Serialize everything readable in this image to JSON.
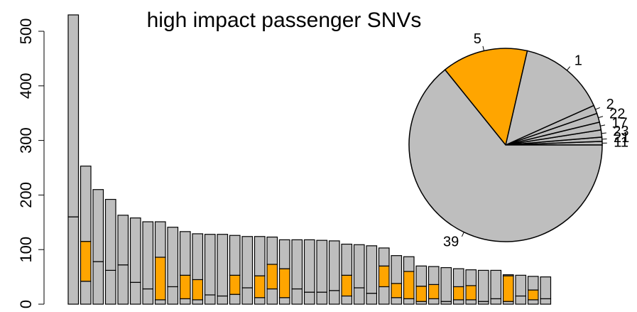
{
  "chart_data": [
    {
      "type": "bar",
      "stacked": true,
      "title": "high impact passenger SNVs",
      "ylim": [
        0,
        500
      ],
      "yticks": [
        0,
        100,
        200,
        300,
        400,
        500
      ],
      "series": [
        {
          "color": "#bebebe",
          "values": [
            160,
            42,
            78,
            62,
            72,
            40,
            28,
            8,
            32,
            10,
            8,
            17,
            15,
            18,
            30,
            12,
            28,
            12,
            28,
            22,
            22,
            25,
            15,
            30,
            20,
            32,
            12,
            10,
            5,
            10,
            5,
            8,
            8,
            5,
            10,
            5,
            15,
            8,
            10
          ]
        },
        {
          "color": "#ffa500",
          "values": [
            0,
            73,
            0,
            0,
            0,
            0,
            0,
            78,
            0,
            43,
            37,
            0,
            0,
            35,
            0,
            40,
            45,
            53,
            0,
            0,
            0,
            0,
            38,
            0,
            0,
            38,
            26,
            50,
            28,
            26,
            0,
            24,
            26,
            0,
            0,
            47,
            0,
            18,
            0
          ]
        },
        {
          "color": "#bebebe",
          "values": [
            370,
            138,
            132,
            130,
            91,
            118,
            123,
            65,
            109,
            80,
            84,
            111,
            113,
            73,
            94,
            72,
            50,
            53,
            90,
            96,
            95,
            91,
            57,
            79,
            87,
            33,
            51,
            27,
            37,
            33,
            62,
            33,
            29,
            57,
            52,
            2,
            38,
            25,
            40
          ]
        }
      ]
    },
    {
      "type": "pie",
      "labels": [
        "11",
        "21",
        "23",
        "17",
        "22",
        "2",
        "1",
        "5",
        "39"
      ],
      "values": [
        0.6,
        0.7,
        1.2,
        1.3,
        1.5,
        1.4,
        14.7,
        14.4,
        64.2
      ],
      "colors": [
        "#bebebe",
        "#bebebe",
        "#bebebe",
        "#bebebe",
        "#bebebe",
        "#bebebe",
        "#bebebe",
        "#ffa500",
        "#bebebe"
      ]
    }
  ]
}
